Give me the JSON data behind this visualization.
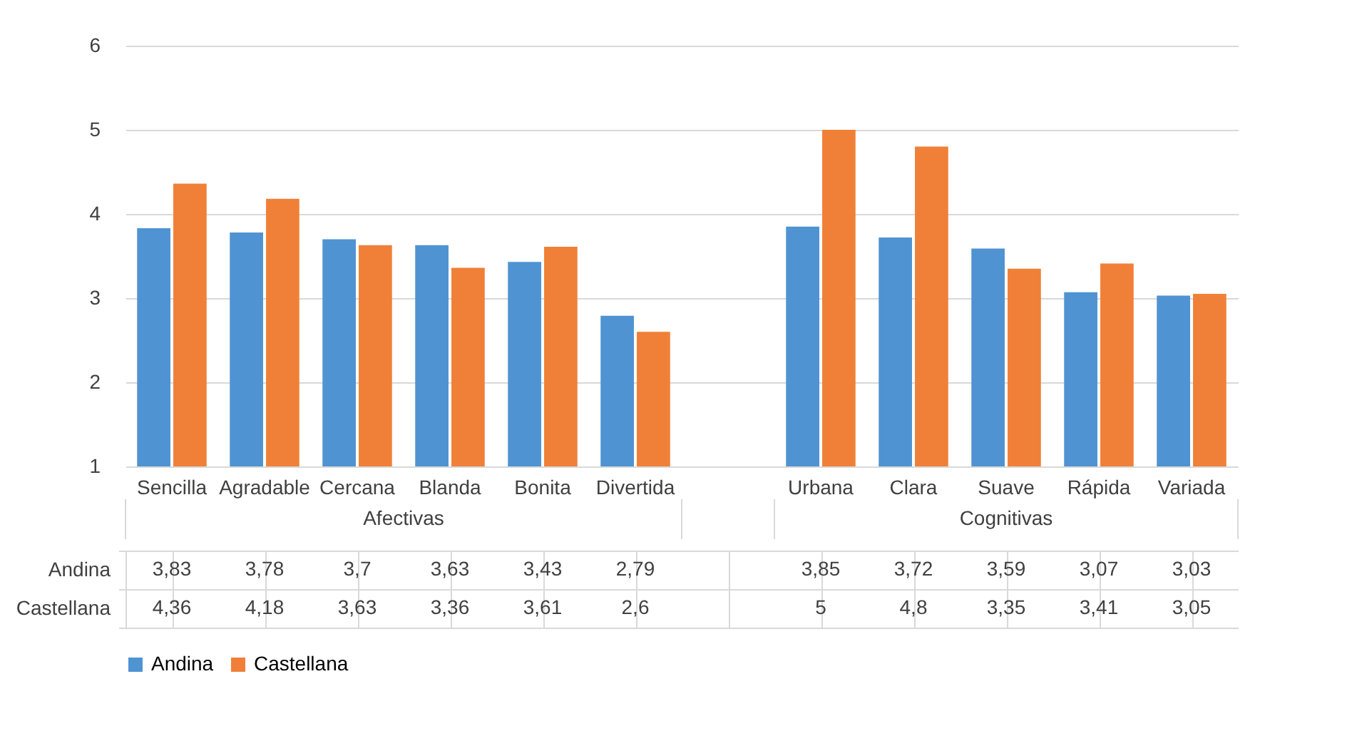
{
  "chart_data": {
    "type": "bar",
    "categories": [
      "Sencilla",
      "Agradable",
      "Cercana",
      "Blanda",
      "Bonita",
      "Divertida",
      null,
      "Urbana",
      "Clara",
      "Suave",
      "Rápida",
      "Variada"
    ],
    "series": [
      {
        "name": "Andina",
        "color": "#4f93d2",
        "values": [
          3.83,
          3.78,
          3.7,
          3.63,
          3.43,
          2.79,
          null,
          3.85,
          3.72,
          3.59,
          3.07,
          3.03
        ],
        "value_labels": [
          "3,83",
          "3,78",
          "3,7",
          "3,63",
          "3,43",
          "2,79",
          null,
          "3,85",
          "3,72",
          "3,59",
          "3,07",
          "3,03"
        ]
      },
      {
        "name": "Castellana",
        "color": "#f08038",
        "values": [
          4.36,
          4.18,
          3.63,
          3.36,
          3.61,
          2.6,
          null,
          5,
          4.8,
          3.35,
          3.41,
          3.05
        ],
        "value_labels": [
          "4,36",
          "4,18",
          "3,63",
          "3,36",
          "3,61",
          "2,6",
          null,
          "5",
          "4,8",
          "3,35",
          "3,41",
          "3,05"
        ]
      }
    ],
    "annotations": [
      "Afectivas",
      "Cognitivas"
    ],
    "ylim": [
      1,
      6
    ],
    "yticks": [
      1,
      2,
      3,
      4,
      5,
      6
    ],
    "grid": "y",
    "legend": "bottom"
  }
}
